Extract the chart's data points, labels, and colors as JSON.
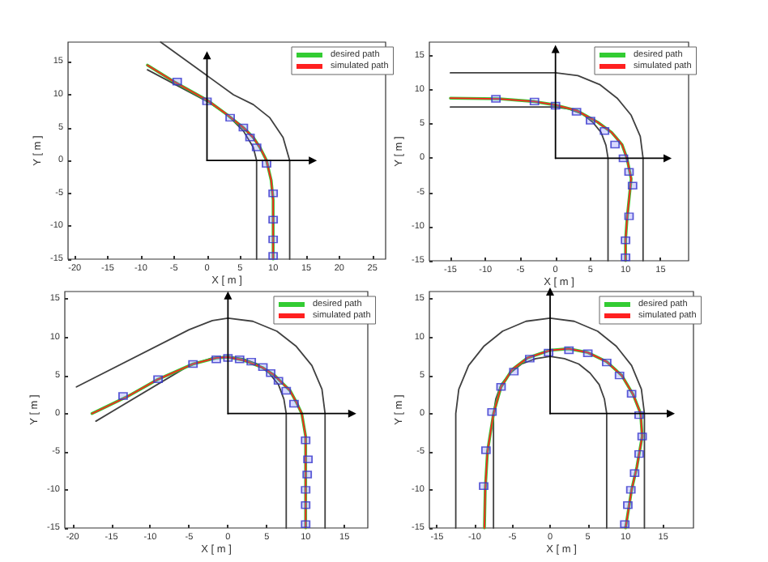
{
  "chart_data": [
    {
      "type": "line",
      "xlabel": "X [ m ]",
      "ylabel": "Y [ m ]",
      "xlim": [
        -21,
        27
      ],
      "ylim": [
        -15,
        18
      ],
      "xticks": [
        -20,
        -15,
        -10,
        -5,
        0,
        5,
        10,
        15,
        20,
        25
      ],
      "yticks": [
        -15,
        -10,
        -5,
        0,
        5,
        10,
        15
      ],
      "legend": "top right",
      "grid": false,
      "series": [
        {
          "color": "#404040",
          "x": [
            -7,
            4,
            7,
            9.5,
            11.5,
            12.5,
            12.5
          ],
          "values": [
            18,
            10,
            8.5,
            6.5,
            3.5,
            0,
            -15
          ]
        },
        {
          "color": "#404040",
          "x": [
            -9,
            0,
            3,
            5.5,
            7,
            7.5,
            7.5
          ],
          "values": [
            13.8,
            9,
            7,
            4.5,
            2,
            0,
            -15
          ]
        },
        {
          "name": "desired path",
          "color": "#33cc33",
          "x": [
            -9,
            -5,
            0,
            3,
            5.5,
            7,
            8,
            9,
            9.7,
            10,
            10
          ],
          "values": [
            14.5,
            12,
            9.2,
            7,
            5,
            3.5,
            2,
            0,
            -3,
            -6,
            -15
          ]
        },
        {
          "name": "simulated path",
          "color": "#ff2020",
          "x": [
            -9,
            -5,
            0,
            3,
            5.5,
            7,
            8,
            9,
            9.7,
            10,
            10
          ],
          "values": [
            14.5,
            12,
            9.2,
            7,
            5,
            3.5,
            2,
            0,
            -3,
            -6,
            -15
          ]
        },
        {
          "type": "scatter",
          "marker": "square",
          "color": "#3333cc",
          "x": [
            -4.5,
            0,
            3.5,
            5.5,
            6.5,
            7.5,
            9,
            10,
            10,
            10,
            10
          ],
          "values": [
            12,
            9,
            6.5,
            5,
            3.5,
            2,
            -0.5,
            -5,
            -9,
            -12,
            -14.5
          ]
        },
        {
          "color": "#000000",
          "marker": "triangle",
          "x": [
            0,
            0
          ],
          "values": [
            0,
            16
          ]
        },
        {
          "color": "#000000",
          "marker": "triangle",
          "x": [
            0,
            16
          ],
          "values": [
            0,
            0
          ]
        }
      ]
    },
    {
      "type": "line",
      "xlabel": "X [ m ]",
      "ylabel": "Y [ m ]",
      "xlim": [
        -18,
        19
      ],
      "ylim": [
        -15,
        17
      ],
      "xticks": [
        -15,
        -10,
        -5,
        0,
        5,
        10,
        15
      ],
      "yticks": [
        -15,
        -10,
        -5,
        0,
        5,
        10,
        15
      ],
      "legend": "top right",
      "grid": false,
      "series": [
        {
          "color": "#404040",
          "x": [
            -15,
            0,
            3.2,
            6.3,
            8.8,
            10.8,
            12.1,
            12.5,
            12.5
          ],
          "values": [
            12.5,
            12.5,
            12.1,
            10.8,
            8.8,
            6.3,
            3.2,
            0,
            -15
          ]
        },
        {
          "color": "#404040",
          "x": [
            -15,
            0,
            1.9,
            3.8,
            5.3,
            6.5,
            7.2,
            7.5,
            7.5
          ],
          "values": [
            7.5,
            7.5,
            7.2,
            6.5,
            5.3,
            3.8,
            1.9,
            0,
            -15
          ]
        },
        {
          "name": "desired path",
          "color": "#33cc33",
          "x": [
            -15,
            -8,
            -3,
            0,
            3,
            6,
            8,
            9.5,
            10.2,
            10.8,
            10.5,
            10.2,
            10,
            10
          ],
          "values": [
            8.8,
            8.7,
            8.3,
            7.8,
            7,
            5.3,
            3.8,
            2,
            0,
            -3,
            -6,
            -9,
            -12,
            -15
          ]
        },
        {
          "name": "simulated path",
          "color": "#ff2020",
          "x": [
            -15,
            -8,
            -3,
            0,
            3,
            6,
            8,
            9.5,
            10.2,
            10.8,
            10.5,
            10.2,
            10,
            10
          ],
          "values": [
            8.8,
            8.7,
            8.3,
            7.8,
            7,
            5.3,
            3.8,
            2,
            0,
            -3,
            -6,
            -9,
            -12,
            -15
          ]
        },
        {
          "type": "scatter",
          "marker": "square",
          "color": "#3333cc",
          "x": [
            -8.5,
            -3,
            0,
            3,
            5,
            7,
            8.5,
            9.7,
            10.5,
            11,
            10.5,
            10,
            10
          ],
          "values": [
            8.7,
            8.3,
            7.7,
            6.8,
            5.5,
            4,
            2,
            0,
            -2,
            -4,
            -8.5,
            -12,
            -14.5
          ]
        },
        {
          "color": "#000000",
          "marker": "triangle",
          "x": [
            0,
            0
          ],
          "values": [
            0,
            16
          ]
        },
        {
          "color": "#000000",
          "marker": "triangle",
          "x": [
            0,
            16
          ],
          "values": [
            0,
            0
          ]
        }
      ]
    },
    {
      "type": "line",
      "xlabel": "X [ m ]",
      "ylabel": "Y [ m ]",
      "xlim": [
        -21,
        18
      ],
      "ylim": [
        -15,
        16
      ],
      "xticks": [
        -20,
        -15,
        -10,
        -5,
        0,
        5,
        10,
        15
      ],
      "yticks": [
        -15,
        -10,
        -5,
        0,
        5,
        10,
        15
      ],
      "legend": "top right",
      "grid": false,
      "series": [
        {
          "color": "#404040",
          "x": [
            -19.5,
            -5,
            -2,
            0,
            3.2,
            6.3,
            8.8,
            10.8,
            12.1,
            12.5,
            12.5
          ],
          "values": [
            3.5,
            11,
            12.2,
            12.5,
            12.1,
            10.8,
            8.8,
            6.3,
            3.2,
            0,
            -15
          ]
        },
        {
          "color": "#404040",
          "x": [
            -17,
            -5,
            -2,
            0,
            1.9,
            3.8,
            5.3,
            6.5,
            7.2,
            7.5,
            7.5
          ],
          "values": [
            -1,
            6.3,
            7.3,
            7.5,
            7.2,
            6.5,
            5.3,
            3.8,
            1.9,
            0,
            -15
          ]
        },
        {
          "name": "desired path",
          "color": "#33cc33",
          "x": [
            -17.5,
            -13,
            -9,
            -4.5,
            -1.5,
            0,
            2,
            4.5,
            6,
            7,
            8,
            8.8,
            9.5,
            10,
            10
          ],
          "values": [
            0,
            2.2,
            4.5,
            6.5,
            7.3,
            7.4,
            7,
            6,
            5,
            4,
            3,
            1.5,
            0,
            -3,
            -15
          ]
        },
        {
          "name": "simulated path",
          "color": "#ff2020",
          "x": [
            -17.5,
            -13,
            -9,
            -4.5,
            -1.5,
            0,
            2,
            4.5,
            6,
            7,
            8,
            8.8,
            9.5,
            10,
            10
          ],
          "values": [
            0,
            2.2,
            4.5,
            6.5,
            7.3,
            7.4,
            7,
            6,
            5,
            4,
            3,
            1.5,
            0,
            -3,
            -15
          ]
        },
        {
          "type": "scatter",
          "marker": "square",
          "color": "#3333cc",
          "x": [
            -13.5,
            -9,
            -4.5,
            -1.5,
            0,
            1.5,
            3,
            4.5,
            5.5,
            6.5,
            7.5,
            8.5,
            10,
            10.3,
            10.2,
            10,
            10,
            10
          ],
          "values": [
            2.3,
            4.5,
            6.5,
            7.1,
            7.3,
            7.1,
            6.8,
            6.1,
            5.3,
            4.3,
            3,
            1.3,
            -3.5,
            -6,
            -8,
            -10,
            -12,
            -14.5
          ]
        },
        {
          "color": "#000000",
          "marker": "triangle",
          "x": [
            0,
            0
          ],
          "values": [
            0,
            15.5
          ]
        },
        {
          "color": "#000000",
          "marker": "triangle",
          "x": [
            0,
            16
          ],
          "values": [
            0,
            0
          ]
        }
      ]
    },
    {
      "type": "line",
      "xlabel": "X [ m ]",
      "ylabel": "Y [ m ]",
      "xlim": [
        -16,
        19
      ],
      "ylim": [
        -15,
        16
      ],
      "xticks": [
        -15,
        -10,
        -5,
        0,
        5,
        10,
        15
      ],
      "yticks": [
        -15,
        -10,
        -5,
        0,
        5,
        10,
        15
      ],
      "legend": "top right",
      "grid": false,
      "series": [
        {
          "color": "#404040",
          "x": [
            -12.5,
            -12.5,
            -12.1,
            -10.8,
            -8.8,
            -6.3,
            -3.2,
            0,
            3.2,
            6.3,
            8.8,
            10.8,
            12.1,
            12.5,
            12.5
          ],
          "values": [
            -15,
            0,
            3.2,
            6.3,
            8.8,
            10.8,
            12.1,
            12.5,
            12.1,
            10.8,
            8.8,
            6.3,
            3.2,
            0,
            -15
          ]
        },
        {
          "color": "#404040",
          "x": [
            -7.5,
            -7.5,
            -7.2,
            -6.5,
            -5.3,
            -3.8,
            -1.9,
            0,
            1.9,
            3.8,
            5.3,
            6.5,
            7.2,
            7.5,
            7.5
          ],
          "values": [
            -15,
            0,
            1.9,
            3.8,
            5.3,
            6.5,
            7.2,
            7.5,
            7.2,
            6.5,
            5.3,
            3.8,
            1.9,
            0,
            -15
          ]
        },
        {
          "name": "desired path",
          "color": "#33cc33",
          "x": [
            -8.7,
            -8.6,
            -8.3,
            -7.5,
            -6.5,
            -5,
            -3,
            0,
            2.5,
            5,
            7.5,
            9.5,
            11,
            12,
            12.2,
            11.5,
            10.8,
            10
          ],
          "values": [
            -15,
            -10,
            -5,
            0,
            3.5,
            5.8,
            7.3,
            8.3,
            8.5,
            8,
            6.8,
            5,
            2.5,
            0,
            -3,
            -7,
            -10,
            -15
          ]
        },
        {
          "name": "simulated path",
          "color": "#ff2020",
          "x": [
            -8.7,
            -8.6,
            -8.3,
            -7.5,
            -6.5,
            -5,
            -3,
            0,
            2.5,
            5,
            7.5,
            9.5,
            11,
            12,
            12.2,
            11.5,
            10.8,
            10
          ],
          "values": [
            -15,
            -10,
            -5,
            0,
            3.5,
            5.8,
            7.3,
            8.3,
            8.5,
            8,
            6.8,
            5,
            2.5,
            0,
            -3,
            -7,
            -10,
            -15
          ]
        },
        {
          "type": "scatter",
          "marker": "square",
          "color": "#3333cc",
          "x": [
            -8.8,
            -8.5,
            -7.7,
            -6.5,
            -4.8,
            -2.7,
            -0.2,
            2.5,
            5,
            7.5,
            9.2,
            10.8,
            11.8,
            12.2,
            11.8,
            11.2,
            10.7,
            10.3,
            9.9
          ],
          "values": [
            -9.5,
            -4.8,
            0.2,
            3.5,
            5.5,
            7.2,
            8,
            8.3,
            7.9,
            6.7,
            5,
            2.6,
            -0.2,
            -3,
            -5.3,
            -7.8,
            -10,
            -12,
            -14.5
          ]
        },
        {
          "color": "#000000",
          "marker": "triangle",
          "x": [
            0,
            0
          ],
          "values": [
            0,
            16
          ]
        },
        {
          "color": "#000000",
          "marker": "triangle",
          "x": [
            0,
            16
          ],
          "values": [
            0,
            0
          ]
        }
      ]
    }
  ]
}
